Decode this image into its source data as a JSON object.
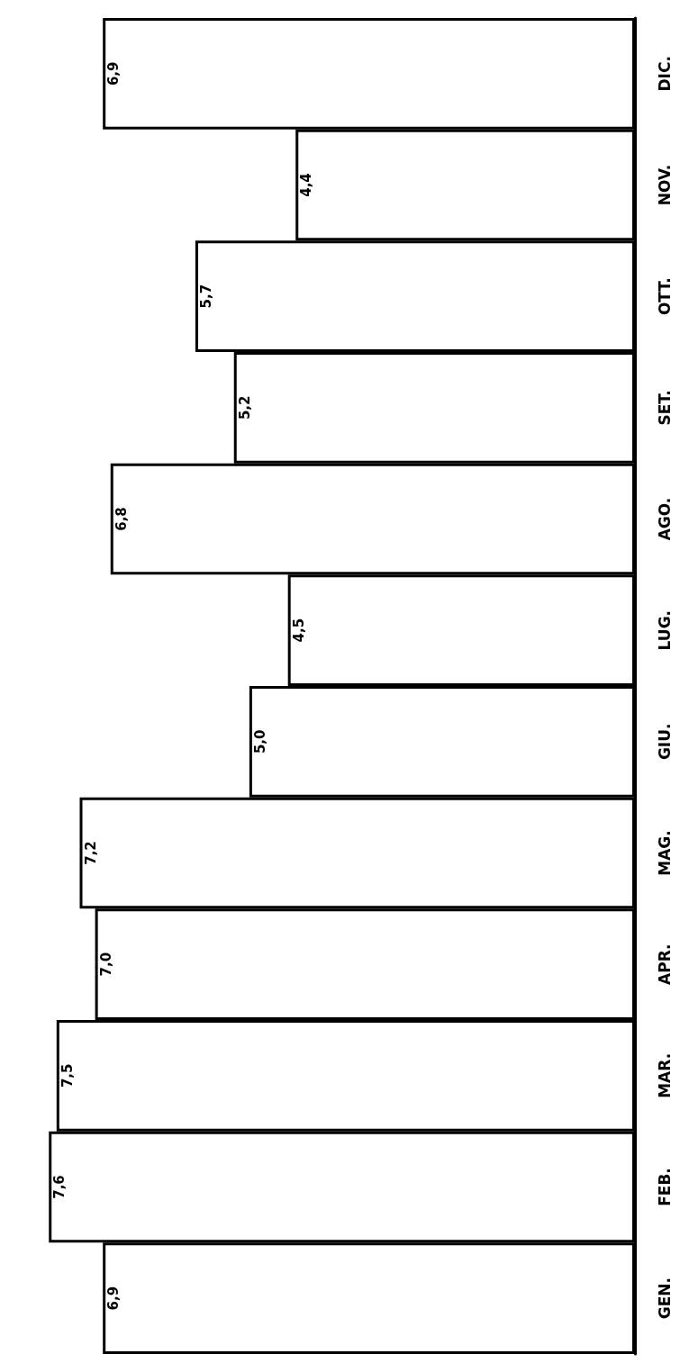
{
  "chart_data": {
    "type": "bar",
    "orientation": "horizontal",
    "categories": [
      "DIC.",
      "NOV.",
      "OTT.",
      "SET.",
      "AGO.",
      "LUG.",
      "GIU.",
      "MAG.",
      "APR.",
      "MAR.",
      "FEB.",
      "GEN."
    ],
    "values": [
      6.9,
      4.4,
      5.7,
      5.2,
      6.8,
      4.5,
      5.0,
      7.2,
      7.0,
      7.5,
      7.6,
      6.9
    ],
    "value_labels": [
      "6,9",
      "4,4",
      "5,7",
      "5,2",
      "6,8",
      "4,5",
      "5,0",
      "7,2",
      "7,0",
      "7,5",
      "7,6",
      "6,9"
    ],
    "color": "#ffffff"
  }
}
